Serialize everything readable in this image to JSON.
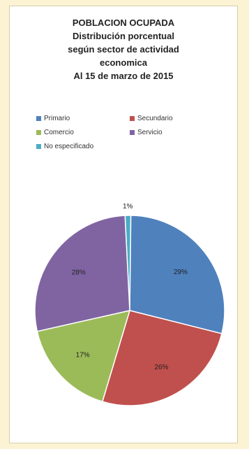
{
  "chart_data": {
    "type": "pie",
    "title_lines": [
      "POBLACION OCUPADA",
      "Distribución porcentual",
      "según sector de actividad",
      "economica",
      "Al 15 de marzo de 2015"
    ],
    "categories": [
      "No especificado",
      "Primario",
      "Secundario",
      "Comercio",
      "Servicio"
    ],
    "values": [
      1,
      29,
      26,
      17,
      28
    ],
    "labels": [
      "1%",
      "29%",
      "26%",
      "17%",
      "28%"
    ],
    "colors": [
      "#4bacc6",
      "#4f81bd",
      "#c0504d",
      "#9bbb59",
      "#8064a2"
    ],
    "legend": [
      {
        "name": "Primario",
        "color": "#4f81bd"
      },
      {
        "name": "Secundario",
        "color": "#c0504d"
      },
      {
        "name": "Comercio",
        "color": "#9bbb59"
      },
      {
        "name": "Servicio",
        "color": "#8064a2"
      },
      {
        "name": "No especificado",
        "color": "#4bacc6"
      }
    ],
    "legend_position": "top"
  }
}
